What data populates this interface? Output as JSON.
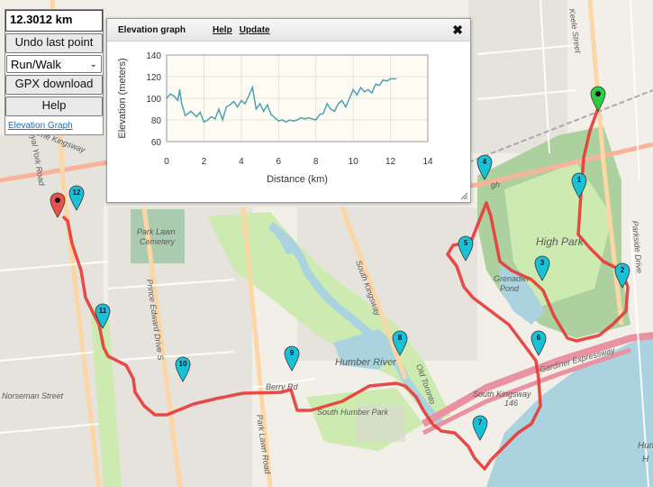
{
  "controls": {
    "distance": "12.3012 km",
    "undo_label": "Undo last point",
    "mode_selected": "Run/Walk",
    "gpx_label": "GPX download",
    "help_label": "Help",
    "elevation_link": "Elevation Graph"
  },
  "elevation_window": {
    "title": "Elevation graph",
    "help_link": "Help",
    "update_link": "Update",
    "close_icon": "close-icon"
  },
  "chart_data": {
    "type": "line",
    "xlabel": "Distance (km)",
    "ylabel": "Elevation (meters)",
    "xlim": [
      0,
      14
    ],
    "ylim": [
      60,
      140
    ],
    "x_ticks": [
      0,
      2,
      4,
      6,
      8,
      10,
      12,
      14
    ],
    "y_ticks": [
      60,
      80,
      100,
      120,
      140
    ],
    "grid": true,
    "color": "#4aa3b5",
    "x": [
      0,
      0.2,
      0.4,
      0.6,
      0.7,
      0.8,
      0.9,
      1.0,
      1.3,
      1.6,
      1.8,
      2.0,
      2.2,
      2.4,
      2.6,
      2.8,
      3.0,
      3.2,
      3.4,
      3.6,
      3.8,
      4.0,
      4.2,
      4.4,
      4.6,
      4.8,
      5.0,
      5.2,
      5.4,
      5.6,
      5.8,
      6.0,
      6.2,
      6.4,
      6.6,
      6.8,
      7.0,
      7.2,
      7.4,
      7.6,
      7.8,
      8.0,
      8.2,
      8.4,
      8.6,
      8.8,
      9.0,
      9.2,
      9.4,
      9.6,
      9.8,
      10.0,
      10.2,
      10.4,
      10.6,
      10.8,
      11.0,
      11.2,
      11.4,
      11.6,
      11.8,
      12.0,
      12.3
    ],
    "y": [
      100,
      104,
      102,
      98,
      108,
      95,
      90,
      84,
      88,
      83,
      87,
      78,
      80,
      83,
      81,
      90,
      80,
      92,
      94,
      97,
      92,
      98,
      95,
      102,
      110,
      90,
      95,
      88,
      94,
      85,
      82,
      79,
      80,
      78,
      80,
      79,
      80,
      82,
      81,
      82,
      81,
      80,
      85,
      86,
      95,
      90,
      88,
      95,
      98,
      92,
      100,
      108,
      103,
      110,
      106,
      108,
      105,
      113,
      112,
      117,
      116,
      118,
      118
    ]
  },
  "map_labels": {
    "high_park": "High Park",
    "park_lawn_cemetery": "Park Lawn Cemetery",
    "south_kingsway_road": "South Kingsway",
    "humber_river": "Humber River",
    "old_toronto": "Old Toronto",
    "south_humber_park": "South Humber Park",
    "gardiner": "Gardiner Expressway",
    "south_kingsway_bottom": "South Kingsway",
    "hwy_146": "146",
    "prince_edward": "Prince Edward Drive S",
    "park_lawn_road": "Park Lawn Road",
    "berry_rd": "Berry Rd",
    "keele_street": "Keele Street",
    "parkside_drive": "Parkside Drive",
    "grenadier_pond": "Grenadier Pond",
    "royal_york": "Royal York Road",
    "the_kingsway": "The Kingsway",
    "norseman": "Norseman Street",
    "humber_partial": "Hum",
    "high_park_short": "gh",
    "lake_h": "H"
  },
  "markers": {
    "start": "start-marker",
    "end": "end-marker",
    "numbers": [
      "1",
      "2",
      "3",
      "4",
      "5",
      "6",
      "7",
      "8",
      "9",
      "10",
      "11",
      "12"
    ]
  },
  "colors": {
    "route": "#e53935",
    "water": "#aad3df",
    "park": "#cdebb0",
    "forest": "#add19e",
    "marker": "#19c1d6",
    "start_marker": "#2ecc40",
    "end_marker": "#e8524a"
  }
}
